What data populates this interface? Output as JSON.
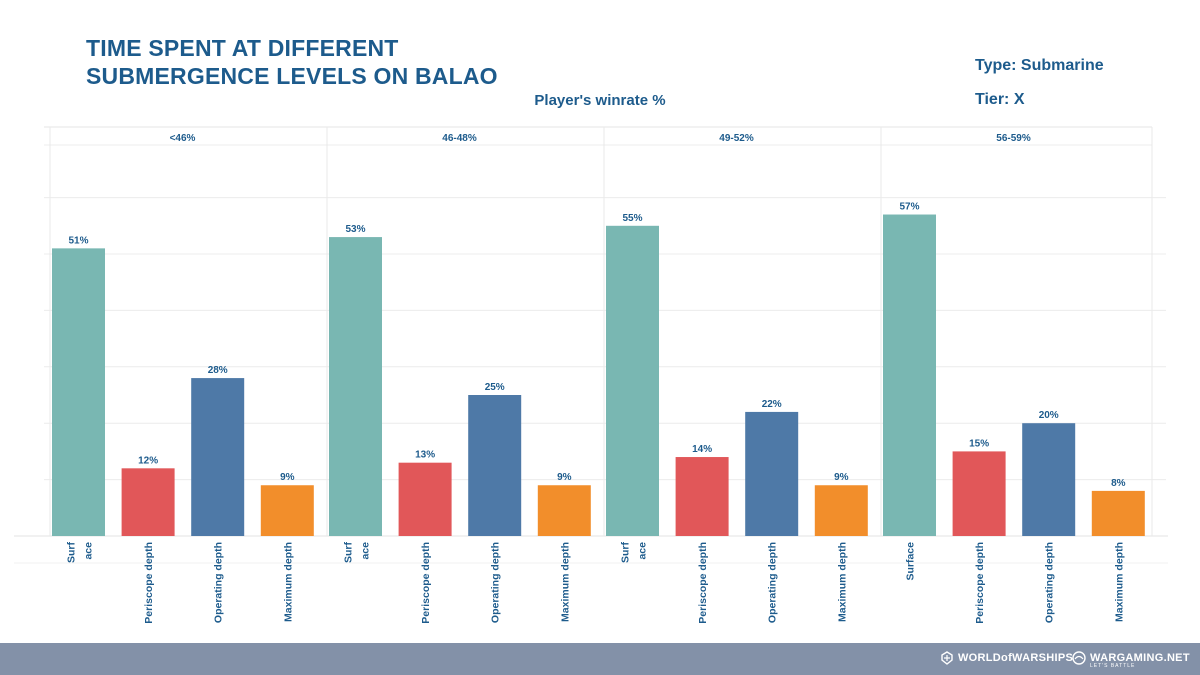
{
  "header": {
    "title_line1": "TIME SPENT AT DIFFERENT",
    "title_line2": "SUBMERGENCE LEVELS ON BALAO",
    "type_label": "Type: Submarine",
    "tier_label": "Tier: X",
    "panel_axis_label": "Player's winrate %"
  },
  "footer": {
    "brand_wows": "WORLDofWARSHIPS",
    "brand_wg": "WARGAMING.NET",
    "brand_wg_tagline": "LET'S BATTLE"
  },
  "colors": {
    "surface": "#79b7b2",
    "periscope": "#e15759",
    "operating": "#4e79a7",
    "maximum": "#f28e2b",
    "text": "#1d5b8c"
  },
  "chart_data": {
    "type": "bar",
    "facet_title": "Player's winrate %",
    "categories": [
      "Surface",
      "Periscope depth",
      "Operating depth",
      "Maximum depth"
    ],
    "tick_labels": [
      [
        "Surf\nace",
        "Periscope depth",
        "Operating depth",
        "Maximum depth"
      ],
      [
        "Surf\nace",
        "Periscope depth",
        "Operating depth",
        "Maximum depth"
      ],
      [
        "Surf\nace",
        "Periscope depth",
        "Operating depth",
        "Maximum depth"
      ],
      [
        "Surface",
        "Periscope depth",
        "Operating depth",
        "Maximum depth"
      ]
    ],
    "panels": [
      {
        "name": "<46%",
        "values": [
          51,
          12,
          28,
          9
        ],
        "labels": [
          "51%",
          "12%",
          "28%",
          "9%"
        ]
      },
      {
        "name": "46-48%",
        "values": [
          53,
          13,
          25,
          9
        ],
        "labels": [
          "53%",
          "13%",
          "25%",
          "9%"
        ]
      },
      {
        "name": "49-52%",
        "values": [
          55,
          14,
          22,
          9
        ],
        "labels": [
          "55%",
          "14%",
          "22%",
          "9%"
        ]
      },
      {
        "name": "56-59%",
        "values": [
          57,
          15,
          20,
          8
        ],
        "labels": [
          "57%",
          "15%",
          "20%",
          "8%"
        ]
      }
    ],
    "ylim": [
      0,
      70
    ],
    "grid": true,
    "legend": "none"
  }
}
